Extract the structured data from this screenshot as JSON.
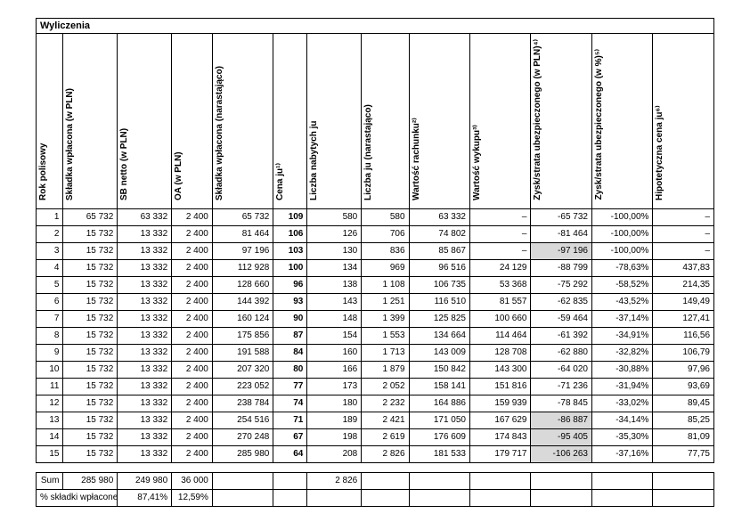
{
  "title": "Wyliczenia",
  "headers": [
    "Rok polisowy",
    "Składka wpłacona (w PLN)",
    "SB netto (w PLN)",
    "OA (w PLN)",
    "Składka wpłacona (narastająco)",
    "Cena ju¹⁾",
    "Liczba nabytych ju",
    "Liczba ju (narastająco)",
    "Wartość rachunku²⁾",
    "Wartość wykupu³⁾",
    "Zysk/strata ubezpieczonego (w PLN)⁴⁾",
    "Zysk/strata ubezpieczonego (w %)⁵⁾",
    "Hipotetyczna cena ju⁶⁾"
  ],
  "rows": [
    {
      "r": "1",
      "sw": "65 732",
      "sb": "63 332",
      "oa": "2 400",
      "swn": "65 732",
      "cj": "109",
      "lnj": "580",
      "ljn": "580",
      "wr": "63 332",
      "ww": "–",
      "zs": "-65 732",
      "zsp": "-100,00%",
      "hcj": "–",
      "zsShade": false
    },
    {
      "r": "2",
      "sw": "15 732",
      "sb": "13 332",
      "oa": "2 400",
      "swn": "81 464",
      "cj": "106",
      "lnj": "126",
      "ljn": "706",
      "wr": "74 802",
      "ww": "–",
      "zs": "-81 464",
      "zsp": "-100,00%",
      "hcj": "–",
      "zsShade": false
    },
    {
      "r": "3",
      "sw": "15 732",
      "sb": "13 332",
      "oa": "2 400",
      "swn": "97 196",
      "cj": "103",
      "lnj": "130",
      "ljn": "836",
      "wr": "85 867",
      "ww": "–",
      "zs": "-97 196",
      "zsp": "-100,00%",
      "hcj": "–",
      "zsShade": true
    },
    {
      "r": "4",
      "sw": "15 732",
      "sb": "13 332",
      "oa": "2 400",
      "swn": "112 928",
      "cj": "100",
      "lnj": "134",
      "ljn": "969",
      "wr": "96 516",
      "ww": "24 129",
      "zs": "-88 799",
      "zsp": "-78,63%",
      "hcj": "437,83",
      "zsShade": false
    },
    {
      "r": "5",
      "sw": "15 732",
      "sb": "13 332",
      "oa": "2 400",
      "swn": "128 660",
      "cj": "96",
      "lnj": "138",
      "ljn": "1 108",
      "wr": "106 735",
      "ww": "53 368",
      "zs": "-75 292",
      "zsp": "-58,52%",
      "hcj": "214,35",
      "zsShade": false
    },
    {
      "r": "6",
      "sw": "15 732",
      "sb": "13 332",
      "oa": "2 400",
      "swn": "144 392",
      "cj": "93",
      "lnj": "143",
      "ljn": "1 251",
      "wr": "116 510",
      "ww": "81 557",
      "zs": "-62 835",
      "zsp": "-43,52%",
      "hcj": "149,49",
      "zsShade": false
    },
    {
      "r": "7",
      "sw": "15 732",
      "sb": "13 332",
      "oa": "2 400",
      "swn": "160 124",
      "cj": "90",
      "lnj": "148",
      "ljn": "1 399",
      "wr": "125 825",
      "ww": "100 660",
      "zs": "-59 464",
      "zsp": "-37,14%",
      "hcj": "127,41",
      "zsShade": false
    },
    {
      "r": "8",
      "sw": "15 732",
      "sb": "13 332",
      "oa": "2 400",
      "swn": "175 856",
      "cj": "87",
      "lnj": "154",
      "ljn": "1 553",
      "wr": "134 664",
      "ww": "114 464",
      "zs": "-61 392",
      "zsp": "-34,91%",
      "hcj": "116,56",
      "zsShade": false
    },
    {
      "r": "9",
      "sw": "15 732",
      "sb": "13 332",
      "oa": "2 400",
      "swn": "191 588",
      "cj": "84",
      "lnj": "160",
      "ljn": "1 713",
      "wr": "143 009",
      "ww": "128 708",
      "zs": "-62 880",
      "zsp": "-32,82%",
      "hcj": "106,79",
      "zsShade": false
    },
    {
      "r": "10",
      "sw": "15 732",
      "sb": "13 332",
      "oa": "2 400",
      "swn": "207 320",
      "cj": "80",
      "lnj": "166",
      "ljn": "1 879",
      "wr": "150 842",
      "ww": "143 300",
      "zs": "-64 020",
      "zsp": "-30,88%",
      "hcj": "97,96",
      "zsShade": false
    },
    {
      "r": "11",
      "sw": "15 732",
      "sb": "13 332",
      "oa": "2 400",
      "swn": "223 052",
      "cj": "77",
      "lnj": "173",
      "ljn": "2 052",
      "wr": "158 141",
      "ww": "151 816",
      "zs": "-71 236",
      "zsp": "-31,94%",
      "hcj": "93,69",
      "zsShade": false
    },
    {
      "r": "12",
      "sw": "15 732",
      "sb": "13 332",
      "oa": "2 400",
      "swn": "238 784",
      "cj": "74",
      "lnj": "180",
      "ljn": "2 232",
      "wr": "164 886",
      "ww": "159 939",
      "zs": "-78 845",
      "zsp": "-33,02%",
      "hcj": "89,45",
      "zsShade": false
    },
    {
      "r": "13",
      "sw": "15 732",
      "sb": "13 332",
      "oa": "2 400",
      "swn": "254 516",
      "cj": "71",
      "lnj": "189",
      "ljn": "2 421",
      "wr": "171 050",
      "ww": "167 629",
      "zs": "-86 887",
      "zsp": "-34,14%",
      "hcj": "85,25",
      "zsShade": true
    },
    {
      "r": "14",
      "sw": "15 732",
      "sb": "13 332",
      "oa": "2 400",
      "swn": "270 248",
      "cj": "67",
      "lnj": "198",
      "ljn": "2 619",
      "wr": "176 609",
      "ww": "174 843",
      "zs": "-95 405",
      "zsp": "-35,30%",
      "hcj": "81,09",
      "zsShade": true
    },
    {
      "r": "15",
      "sw": "15 732",
      "sb": "13 332",
      "oa": "2 400",
      "swn": "285 980",
      "cj": "64",
      "lnj": "208",
      "ljn": "2 826",
      "wr": "181 533",
      "ww": "179 717",
      "zs": "-106 263",
      "zsp": "-37,16%",
      "hcj": "77,75",
      "zsShade": true
    }
  ],
  "summary": {
    "sum_label": "Sum",
    "sw": "285 980",
    "sb": "249 980",
    "oa": "36 000",
    "lnj": "2 826",
    "pct_label": "% składki wpłaconej",
    "pct_sb": "87,41%",
    "pct_oa": "12,59%"
  }
}
